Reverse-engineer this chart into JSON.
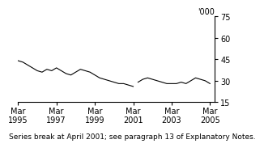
{
  "title": "",
  "ylabel": "'000",
  "footnote": "Series break at April 2001; see paragraph 13 of Explanatory Notes.",
  "ylim": [
    15,
    75
  ],
  "yticks": [
    15,
    30,
    45,
    60,
    75
  ],
  "xlim_start": 1995.17,
  "xlim_end": 2005.42,
  "xtick_positions": [
    1995.17,
    1997.17,
    1999.17,
    2001.17,
    2003.17,
    2005.17
  ],
  "xtick_labels": [
    "Mar\n1995",
    "Mar\n1997",
    "Mar\n1999",
    "Mar\n2001",
    "Mar\n2003",
    "Mar\n2005"
  ],
  "line_color": "#000000",
  "background_color": "#ffffff",
  "series_break_idx": 25,
  "x_seg1": [
    1995.17,
    1995.42,
    1995.67,
    1995.92,
    1996.17,
    1996.42,
    1996.67,
    1996.92,
    1997.17,
    1997.42,
    1997.67,
    1997.92,
    1998.17,
    1998.42,
    1998.67,
    1998.92,
    1999.17,
    1999.42,
    1999.67,
    1999.92,
    2000.17,
    2000.42,
    2000.67,
    2000.92,
    2001.17
  ],
  "y_seg1": [
    44,
    43,
    41,
    39,
    37,
    36,
    38,
    37,
    39,
    37,
    35,
    34,
    36,
    38,
    37,
    36,
    34,
    32,
    31,
    30,
    29,
    28,
    28,
    27,
    26
  ],
  "x_seg2": [
    2001.42,
    2001.67,
    2001.92,
    2002.17,
    2002.42,
    2002.67,
    2002.92,
    2003.17,
    2003.42,
    2003.67,
    2003.92,
    2004.17,
    2004.42,
    2004.67,
    2004.92,
    2005.17
  ],
  "y_seg2": [
    29,
    31,
    32,
    31,
    30,
    29,
    28,
    28,
    28,
    29,
    28,
    30,
    32,
    31,
    30,
    28
  ],
  "font_size_footnote": 6.5,
  "font_size_ticks": 7,
  "font_size_ylabel": 7
}
